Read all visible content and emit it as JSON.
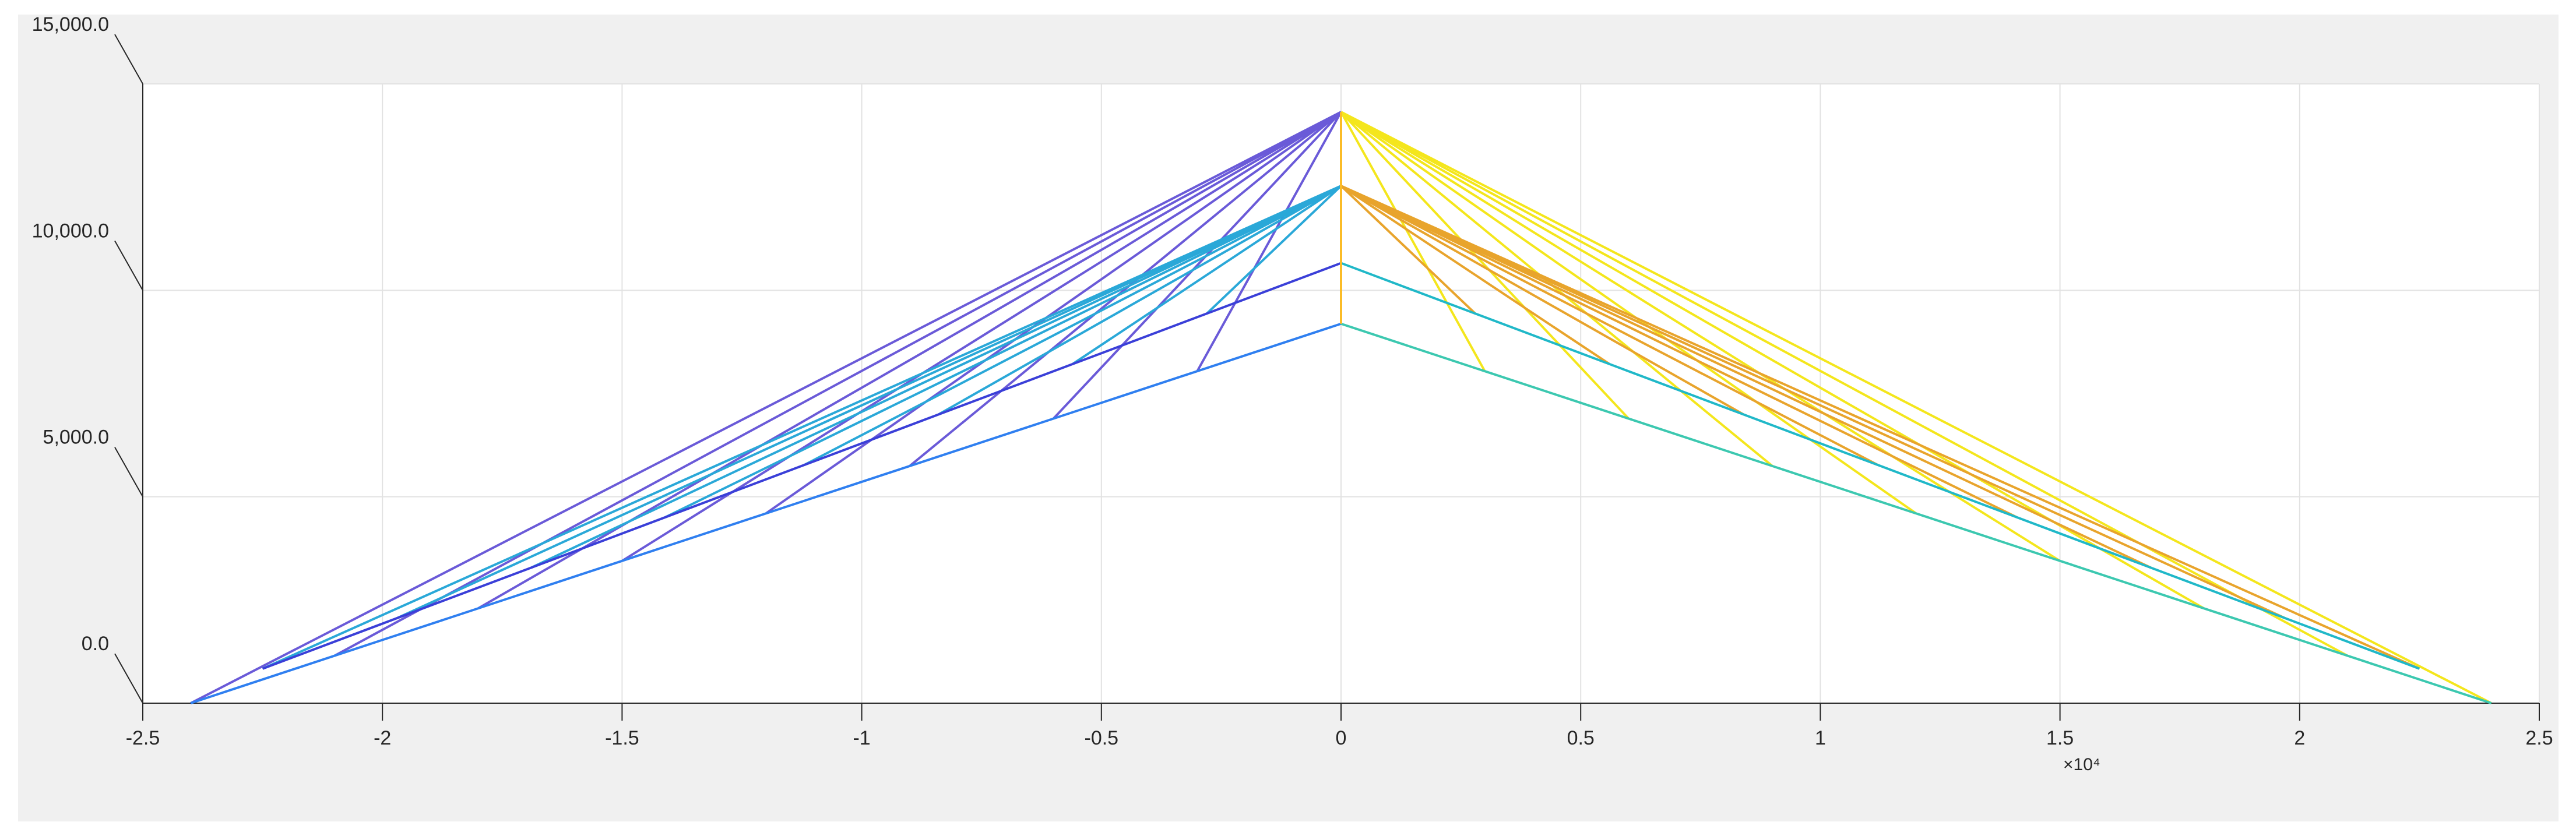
{
  "chart_data": {
    "type": "line",
    "xlim": [
      -2.5,
      2.5
    ],
    "xticks": [
      -2.5,
      -2,
      -1.5,
      -1,
      -0.5,
      0,
      0.5,
      1,
      1.5,
      2,
      2.5
    ],
    "x_exponent_label": "×10⁴",
    "ylim": [
      0,
      15000
    ],
    "yticks": [
      {
        "value": 0,
        "label": "0.0"
      },
      {
        "value": 5000,
        "label": "5,000.0"
      },
      {
        "value": 10000,
        "label": "10,000.0"
      },
      {
        "value": 15000,
        "label": "15,000.0"
      }
    ],
    "grid": true,
    "series": [
      {
        "color": "#6a5ad8",
        "x": [
          0,
          -0.3,
          null,
          0,
          -0.6,
          null,
          0,
          -0.9,
          null,
          0,
          -1.2,
          null,
          0,
          -1.5,
          null,
          0,
          -1.8,
          null,
          0,
          -2.1,
          null,
          0,
          -2.4
        ],
        "values": [
          14320,
          8041,
          null,
          14320,
          6893,
          null,
          14320,
          5744,
          null,
          14320,
          4595,
          null,
          14320,
          3446,
          null,
          14320,
          2298,
          null,
          14320,
          1149,
          null,
          14320,
          0
        ]
      },
      {
        "color": "#f4e61c",
        "x": [
          0,
          0.3,
          null,
          0,
          0.6,
          null,
          0,
          0.9,
          null,
          0,
          1.2,
          null,
          0,
          1.5,
          null,
          0,
          1.8,
          null,
          0,
          2.1,
          null,
          0,
          2.4
        ],
        "values": [
          14320,
          8041,
          null,
          14320,
          6893,
          null,
          14320,
          5744,
          null,
          14320,
          4595,
          null,
          14320,
          3446,
          null,
          14320,
          2298,
          null,
          14320,
          1149,
          null,
          14320,
          0
        ]
      },
      {
        "color": "#2aa8d8",
        "x": [
          0,
          -0.28,
          null,
          0,
          -0.56,
          null,
          0,
          -0.84,
          null,
          0,
          -1.12,
          null,
          0,
          -1.41,
          null,
          0,
          -1.69,
          null,
          0,
          -1.97,
          null,
          0,
          -2.25
        ],
        "values": [
          12530,
          9437,
          null,
          12530,
          8215,
          null,
          12530,
          6992,
          null,
          12530,
          5769,
          null,
          12530,
          4503,
          null,
          12530,
          3280,
          null,
          12530,
          2058,
          null,
          12530,
          835
        ]
      },
      {
        "color": "#e8a42c",
        "x": [
          0,
          0.28,
          null,
          0,
          0.56,
          null,
          0,
          0.84,
          null,
          0,
          1.12,
          null,
          0,
          1.41,
          null,
          0,
          1.69,
          null,
          0,
          1.97,
          null,
          0,
          2.25
        ],
        "values": [
          12530,
          9437,
          null,
          12530,
          8215,
          null,
          12530,
          6992,
          null,
          12530,
          5769,
          null,
          12530,
          4503,
          null,
          12530,
          3280,
          null,
          12530,
          2058,
          null,
          12530,
          835
        ]
      },
      {
        "color": "#2f7ff0",
        "x": [
          -2.4,
          -1.2,
          0
        ],
        "values": [
          0,
          4595,
          9190
        ]
      },
      {
        "color": "#3cc8b0",
        "x": [
          0,
          1.2,
          2.4
        ],
        "values": [
          9190,
          4595,
          0
        ]
      },
      {
        "color": "#3a3fd8",
        "x": [
          -2.25,
          -1.12,
          0
        ],
        "values": [
          835,
          5769,
          10660
        ]
      },
      {
        "color": "#20b8c8",
        "x": [
          0,
          1.12,
          2.25
        ],
        "values": [
          10660,
          5769,
          835
        ]
      },
      {
        "color": "#fbbc27",
        "x": [
          0,
          0
        ],
        "values": [
          9190,
          14320
        ]
      }
    ]
  }
}
